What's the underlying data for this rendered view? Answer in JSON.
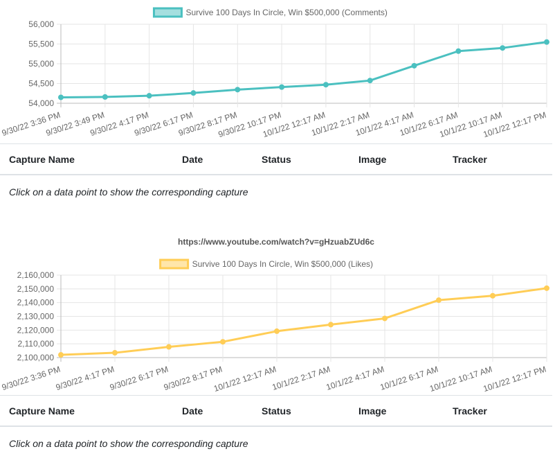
{
  "charts": [
    {
      "legend": "Survive 100 Days In Circle, Win $500,000 (Comments)",
      "color": "#4bc0c0",
      "fill": "rgba(75,192,192,0.5)",
      "ticks": [
        "56,000",
        "55,500",
        "55,000",
        "54,500",
        "54,000"
      ]
    },
    {
      "legend": "Survive 100 Days In Circle, Win $500,000 (Likes)",
      "color": "#ffcd56",
      "fill": "rgba(255,205,86,0.5)",
      "ticks": [
        "2,160,000",
        "2,150,000",
        "2,140,000",
        "2,130,000",
        "2,120,000",
        "2,110,000",
        "2,100,000"
      ]
    }
  ],
  "chart_data": [
    {
      "type": "line",
      "x": [
        "9/30/22 3:36 PM",
        "9/30/22 3:49 PM",
        "9/30/22 4:17 PM",
        "9/30/22 6:17 PM",
        "9/30/22 8:17 PM",
        "9/30/22 10:17 PM",
        "10/1/22 12:17 AM",
        "10/1/22 2:17 AM",
        "10/1/22 4:17 AM",
        "10/1/22 6:17 AM",
        "10/1/22 10:17 AM",
        "10/1/22 12:17 PM"
      ],
      "series": [
        {
          "name": "Survive 100 Days In Circle, Win $500,000 (Comments)",
          "values": [
            54150,
            54160,
            54190,
            54260,
            54345,
            54410,
            54470,
            54575,
            54950,
            55320,
            55400,
            55550
          ]
        }
      ],
      "ylim": [
        54000,
        56000
      ],
      "grid": true,
      "legend": "top-center"
    },
    {
      "type": "line",
      "x": [
        "9/30/22 3:36 PM",
        "9/30/22 4:17 PM",
        "9/30/22 6:17 PM",
        "9/30/22 8:17 PM",
        "10/1/22 12:17 AM",
        "10/1/22 2:17 AM",
        "10/1/22 4:17 AM",
        "10/1/22 6:17 AM",
        "10/1/22 10:17 AM",
        "10/1/22 12:17 PM"
      ],
      "series": [
        {
          "name": "Survive 100 Days In Circle, Win $500,000 (Likes)",
          "values": [
            2102000,
            2103500,
            2107800,
            2111500,
            2119200,
            2124000,
            2128500,
            2141800,
            2145000,
            2150500
          ]
        }
      ],
      "ylim": [
        2100000,
        2160000
      ],
      "grid": true,
      "legend": "top-center"
    }
  ],
  "table": {
    "headers": [
      "Capture Name",
      "Date",
      "Status",
      "Image",
      "Tracker"
    ],
    "hint": "Click on a data point to show the corresponding capture"
  },
  "url": "https://www.youtube.com/watch?v=gHzuabZUd6c"
}
